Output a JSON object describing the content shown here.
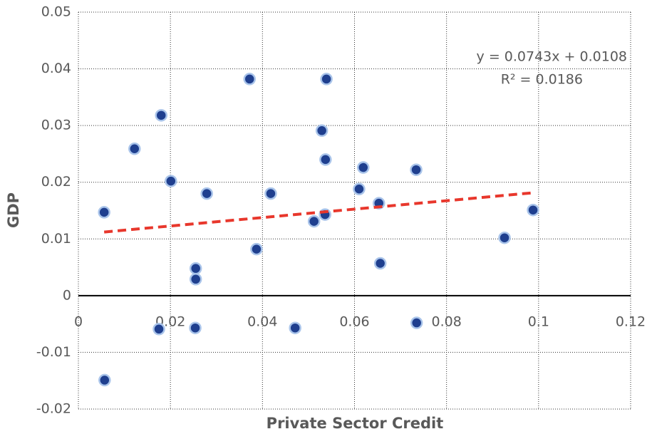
{
  "chart_data": {
    "type": "scatter",
    "x_label": "Private Sector Credit",
    "y_label": "GDP",
    "xlim": [
      0,
      0.12
    ],
    "ylim": [
      -0.02,
      0.05
    ],
    "xticks": [
      0,
      0.02,
      0.04,
      0.06,
      0.08,
      0.1,
      0.12
    ],
    "yticks": [
      -0.02,
      -0.01,
      0,
      0.01,
      0.02,
      0.03,
      0.04,
      0.05
    ],
    "grid": true,
    "series": [
      {
        "color": "#1f3f8f",
        "x": [
          0.0056,
          0.0122,
          0.018,
          0.0201,
          0.0279,
          0.0255,
          0.0255,
          0.0372,
          0.0418,
          0.0387,
          0.0539,
          0.0529,
          0.0537,
          0.0536,
          0.0512,
          0.0619,
          0.061,
          0.0653,
          0.0656,
          0.0734,
          0.0926,
          0.0988,
          0.0175,
          0.0254,
          0.0471,
          0.0735,
          0.0057
        ],
        "values": [
          0.0147,
          0.0259,
          0.0318,
          0.0202,
          0.018,
          0.0048,
          0.0029,
          0.0382,
          0.018,
          0.0082,
          0.0382,
          0.0291,
          0.024,
          0.0143,
          0.0131,
          0.0226,
          0.0188,
          0.0163,
          0.0057,
          0.0222,
          0.0102,
          0.0151,
          -0.0059,
          -0.0057,
          -0.0057,
          -0.0048,
          -0.0149
        ]
      }
    ],
    "trendline": {
      "slope": 0.0743,
      "intercept": 0.0108,
      "color": "#e8372c",
      "equation": "y = 0.0743x + 0.0108",
      "r2_label": "R² = 0.0186"
    }
  }
}
